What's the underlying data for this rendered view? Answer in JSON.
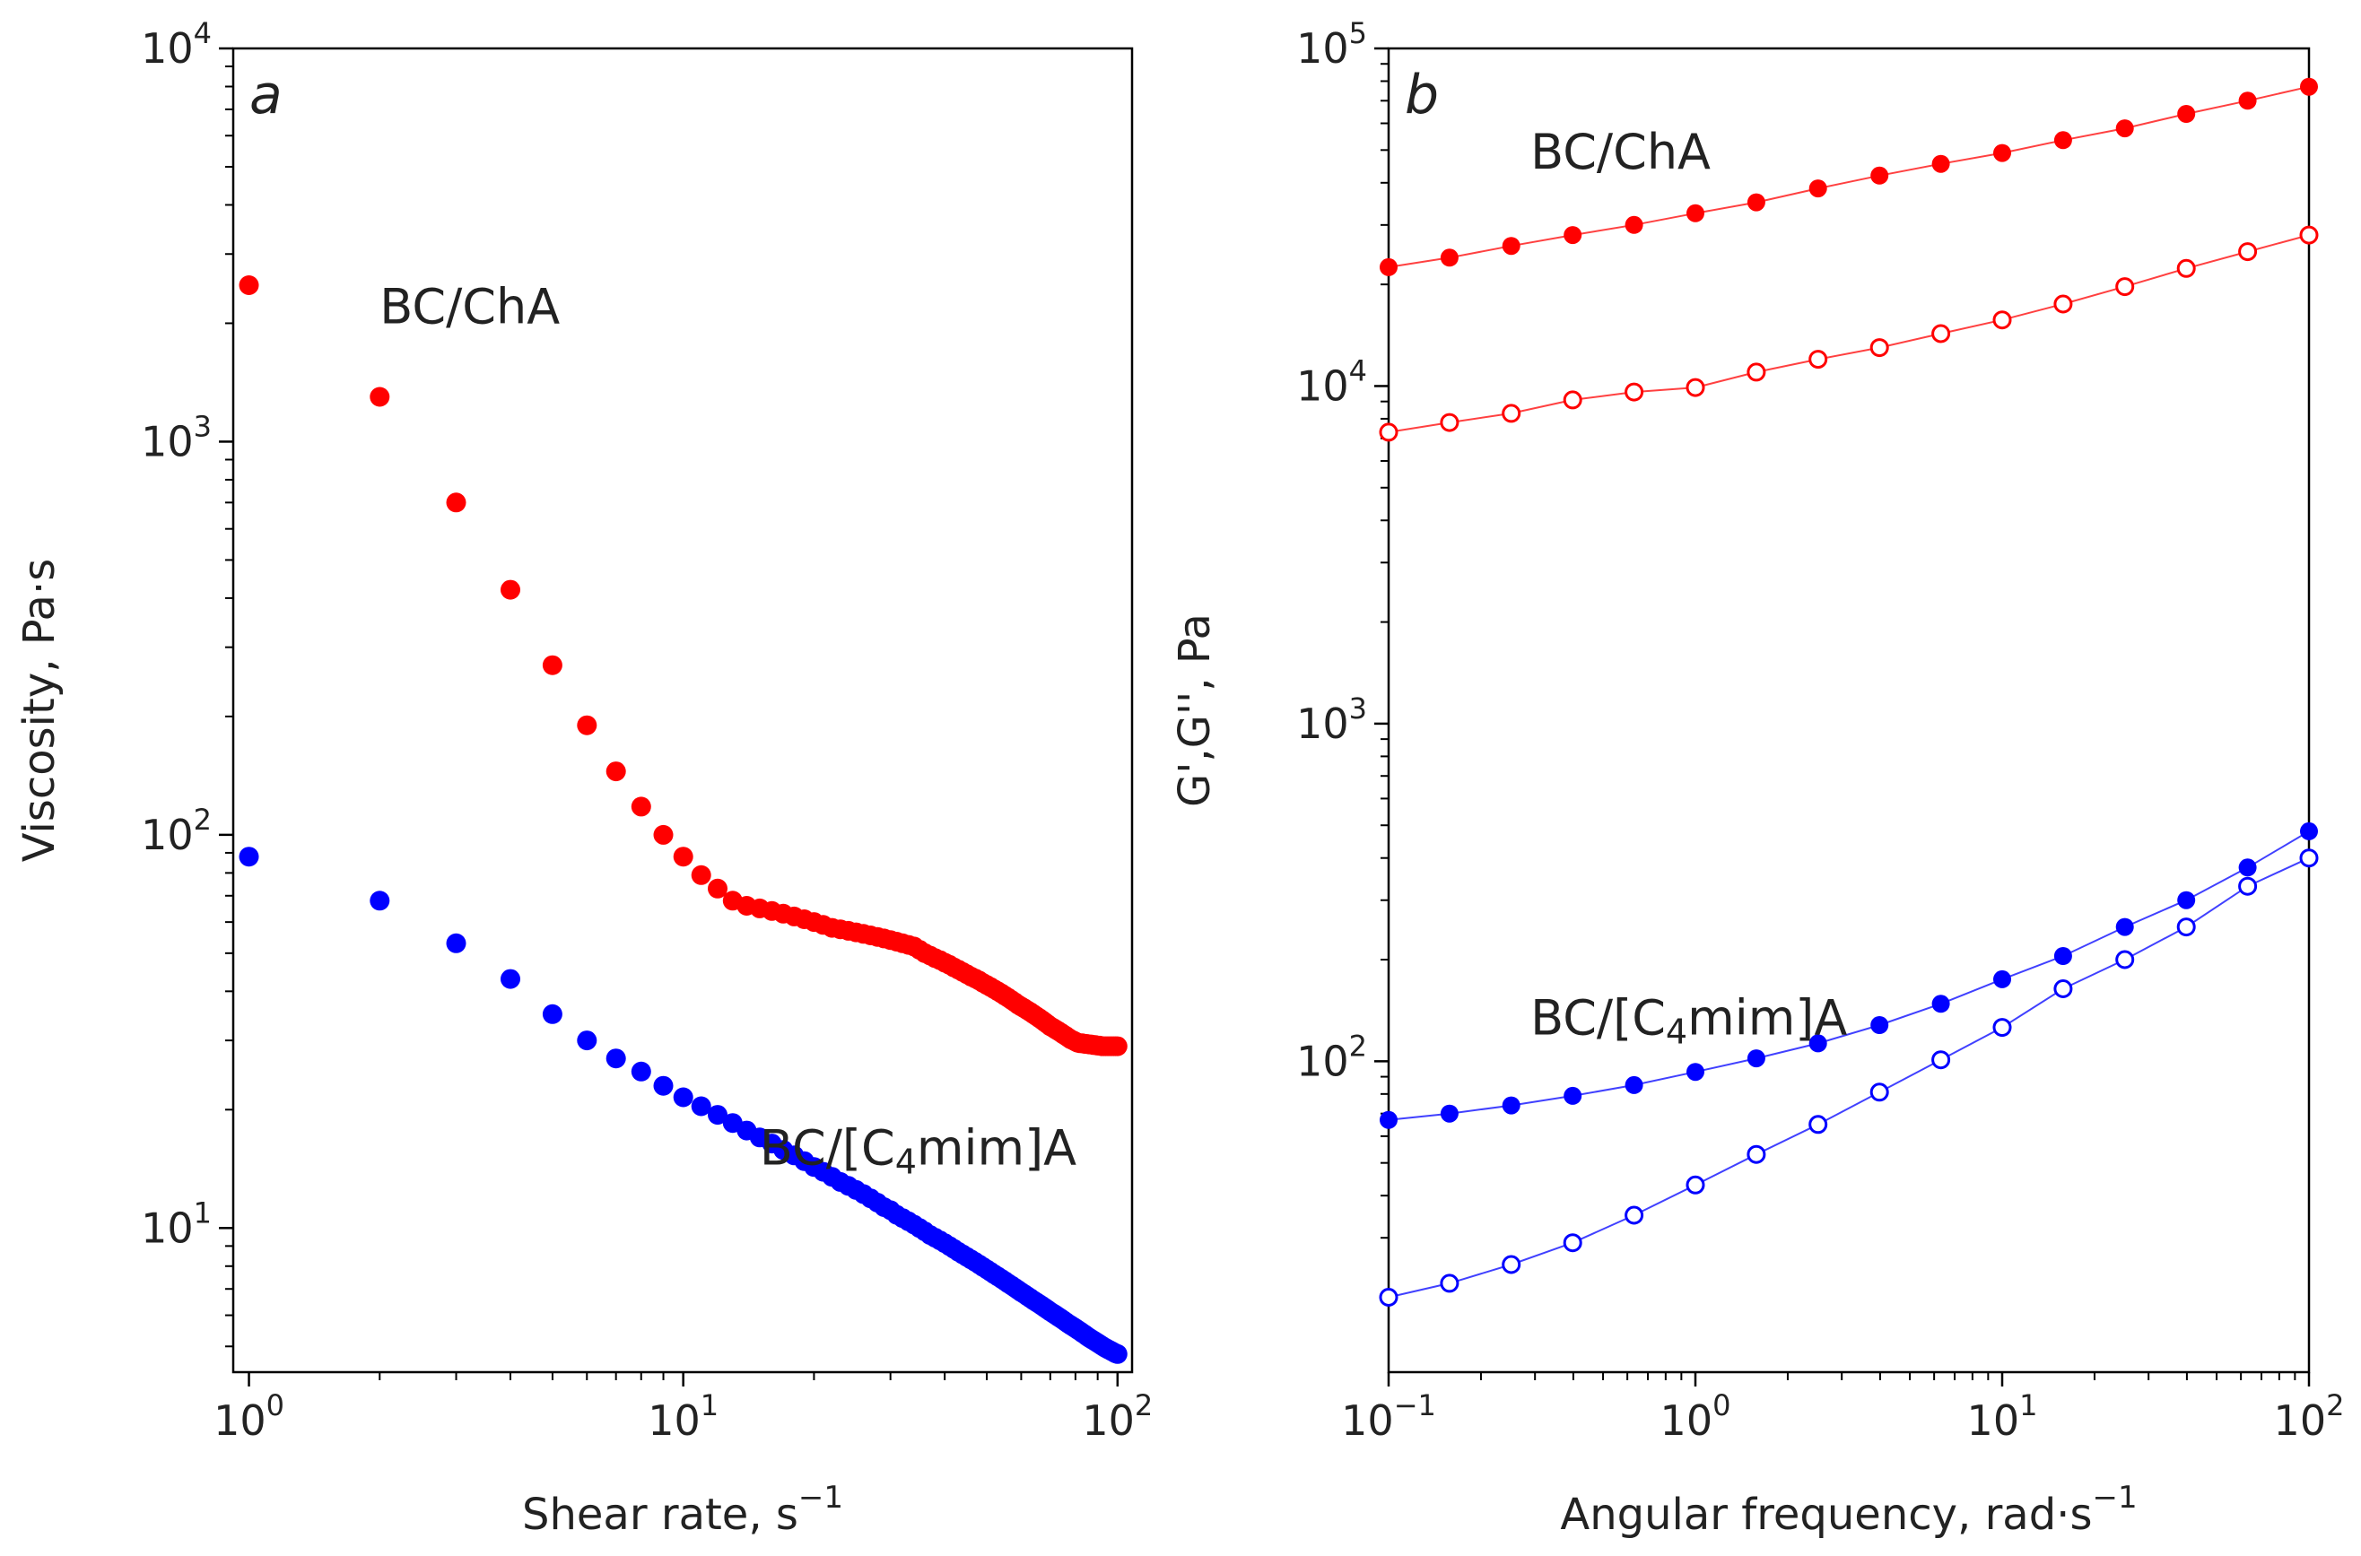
{
  "chart_data": [
    {
      "type": "scatter",
      "panel_letter": "a",
      "xlabel": "Shear rate, s",
      "xlabel_sup": "−1",
      "ylabel": "Viscosity, Pa·s",
      "xscale": "log",
      "yscale": "log",
      "xlim": [
        0.92,
        108
      ],
      "ylim": [
        4.3,
        10000
      ],
      "xticks": [
        {
          "value": 1,
          "base": "10",
          "exp": "0"
        },
        {
          "value": 10,
          "base": "10",
          "exp": "1"
        },
        {
          "value": 100,
          "base": "10",
          "exp": "2"
        }
      ],
      "yticks": [
        {
          "value": 10,
          "base": "10",
          "exp": "1"
        },
        {
          "value": 100,
          "base": "10",
          "exp": "2"
        },
        {
          "value": 1000,
          "base": "10",
          "exp": "3"
        },
        {
          "value": 10000,
          "base": "10",
          "exp": "4"
        }
      ],
      "annotations": [
        {
          "parts": [
            "BC/ChA"
          ],
          "x": 2.0,
          "y": 2000,
          "color": "#222222"
        },
        {
          "parts": [
            "BC/[C",
            "4",
            "mim]A"
          ],
          "x": 15,
          "y": 14.5,
          "color": "#222222"
        }
      ],
      "series": [
        {
          "name": "BC/ChA",
          "color": "#ff0000",
          "marker": "filled",
          "x": [
            1,
            2,
            3,
            4,
            5,
            6,
            7,
            8,
            9,
            10,
            11,
            12,
            13,
            14,
            15,
            16,
            17,
            18,
            19,
            20,
            21,
            22,
            23,
            24,
            25,
            26,
            27,
            28,
            29,
            30,
            31,
            32,
            33,
            34,
            35,
            36,
            37,
            38,
            39,
            40,
            41,
            42,
            43,
            44,
            45,
            46,
            47,
            48,
            49,
            50,
            51,
            52,
            53,
            54,
            55,
            56,
            57,
            58,
            59,
            60,
            61,
            62,
            63,
            64,
            65,
            66,
            67,
            68,
            69,
            70,
            71,
            72,
            73,
            74,
            75,
            76,
            77,
            78,
            79,
            80,
            81,
            82,
            83,
            84,
            85,
            86,
            87,
            88,
            89,
            90,
            91,
            92,
            93,
            94,
            95,
            96,
            97,
            98,
            99,
            100
          ],
          "y": [
            2500,
            1300,
            700,
            420,
            270,
            190,
            145,
            118,
            100,
            88,
            79,
            73,
            68,
            66,
            65,
            64,
            63,
            62,
            61,
            60,
            59,
            58,
            57.5,
            57,
            56.5,
            56,
            55.5,
            55,
            54.5,
            54,
            53.5,
            53,
            52.5,
            52,
            51,
            50,
            49.3,
            48.6,
            48,
            47.3,
            46.7,
            46,
            45.4,
            44.8,
            44.2,
            43.6,
            43.1,
            42.6,
            42,
            41.5,
            41,
            40.5,
            40,
            39.5,
            39,
            38.5,
            38,
            37.5,
            37,
            36.6,
            36.2,
            35.8,
            35.4,
            35,
            34.6,
            34.2,
            33.8,
            33.4,
            33,
            32.6,
            32.3,
            32,
            31.7,
            31.4,
            31.1,
            30.8,
            30.5,
            30.2,
            30,
            29.8,
            29.6,
            29.5,
            29.5,
            29.4,
            29.4,
            29.3,
            29.3,
            29.2,
            29.2,
            29.1,
            29.1,
            29,
            29,
            29,
            29,
            29,
            29,
            29,
            29,
            29
          ]
        },
        {
          "name": "BC/[C4mim]A",
          "color": "#0000ff",
          "marker": "filled",
          "x": [
            1,
            2,
            3,
            4,
            5,
            6,
            7,
            8,
            9,
            10,
            11,
            12,
            13,
            14,
            15,
            16,
            17,
            18,
            19,
            20,
            21,
            22,
            23,
            24,
            25,
            26,
            27,
            28,
            29,
            30,
            31,
            32,
            33,
            34,
            35,
            36,
            37,
            38,
            39,
            40,
            41,
            42,
            43,
            44,
            45,
            46,
            47,
            48,
            49,
            50,
            51,
            52,
            53,
            54,
            55,
            56,
            57,
            58,
            59,
            60,
            61,
            62,
            63,
            64,
            65,
            66,
            67,
            68,
            69,
            70,
            71,
            72,
            73,
            74,
            75,
            76,
            77,
            78,
            79,
            80,
            81,
            82,
            83,
            84,
            85,
            86,
            87,
            88,
            89,
            90,
            91,
            92,
            93,
            94,
            95,
            96,
            97,
            98,
            99,
            100
          ],
          "y": [
            88,
            68,
            53,
            43,
            35,
            30,
            27,
            25,
            23,
            21.5,
            20.4,
            19.4,
            18.5,
            17.7,
            17,
            16.4,
            15.8,
            15.3,
            14.8,
            14.3,
            13.9,
            13.5,
            13.1,
            12.8,
            12.5,
            12.2,
            11.9,
            11.6,
            11.3,
            11.1,
            10.8,
            10.6,
            10.4,
            10.2,
            10,
            9.8,
            9.6,
            9.45,
            9.3,
            9.15,
            9,
            8.85,
            8.7,
            8.57,
            8.44,
            8.32,
            8.2,
            8.08,
            7.96,
            7.85,
            7.74,
            7.63,
            7.53,
            7.43,
            7.33,
            7.23,
            7.14,
            7.05,
            6.96,
            6.87,
            6.79,
            6.71,
            6.63,
            6.55,
            6.48,
            6.41,
            6.34,
            6.27,
            6.2,
            6.13,
            6.07,
            6.01,
            5.95,
            5.89,
            5.83,
            5.77,
            5.71,
            5.66,
            5.61,
            5.56,
            5.51,
            5.46,
            5.41,
            5.36,
            5.31,
            5.26,
            5.22,
            5.18,
            5.14,
            5.1,
            5.06,
            5.02,
            4.98,
            4.95,
            4.92,
            4.89,
            4.86,
            4.83,
            4.8,
            4.78
          ]
        }
      ]
    },
    {
      "type": "line",
      "panel_letter": "b",
      "xlabel": "Angular frequency, rad·s",
      "xlabel_sup": "−1",
      "ylabel": "G',G'', Pa",
      "xscale": "log",
      "yscale": "log",
      "xlim": [
        0.1,
        100
      ],
      "ylim": [
        12,
        100000
      ],
      "xticks": [
        {
          "value": 0.1,
          "base": "10",
          "exp": "−1"
        },
        {
          "value": 1,
          "base": "10",
          "exp": "0"
        },
        {
          "value": 10,
          "base": "10",
          "exp": "1"
        },
        {
          "value": 100,
          "base": "10",
          "exp": "2"
        }
      ],
      "yticks": [
        {
          "value": 100,
          "base": "10",
          "exp": "2"
        },
        {
          "value": 1000,
          "base": "10",
          "exp": "3"
        },
        {
          "value": 10000,
          "base": "10",
          "exp": "4"
        },
        {
          "value": 100000,
          "base": "10",
          "exp": "5"
        }
      ],
      "annotations": [
        {
          "parts": [
            "BC/ChA"
          ],
          "x": 0.29,
          "y": 44000,
          "color": "#222222"
        },
        {
          "parts": [
            "BC/[C",
            "4",
            "mim]A"
          ],
          "x": 0.29,
          "y": 120,
          "color": "#222222"
        }
      ],
      "series": [
        {
          "name": "BC/ChA G'",
          "color": "#ff0000",
          "marker": "filled",
          "x": [
            0.1,
            0.158,
            0.251,
            0.398,
            0.631,
            1,
            1.58,
            2.51,
            3.98,
            6.31,
            10,
            15.8,
            25.1,
            39.8,
            63.1,
            100
          ],
          "y": [
            22500,
            24000,
            26000,
            28000,
            30000,
            32500,
            35000,
            38500,
            42000,
            45500,
            49000,
            53500,
            58000,
            64000,
            70000,
            77000
          ]
        },
        {
          "name": "BC/ChA G''",
          "color": "#ff0000",
          "marker": "open",
          "x": [
            0.1,
            0.158,
            0.251,
            0.398,
            0.631,
            1,
            1.58,
            2.51,
            3.98,
            6.31,
            10,
            15.8,
            25.1,
            39.8,
            63.1,
            100
          ],
          "y": [
            7300,
            7800,
            8300,
            9100,
            9600,
            9900,
            11000,
            12000,
            13000,
            14300,
            15700,
            17500,
            19700,
            22300,
            25000,
            28000
          ]
        },
        {
          "name": "BC/[C4mim]A G'",
          "color": "#0000ff",
          "marker": "filled",
          "x": [
            0.1,
            0.158,
            0.251,
            0.398,
            0.631,
            1,
            1.58,
            2.51,
            3.98,
            6.31,
            10,
            15.8,
            25.1,
            39.8,
            63.1,
            100
          ],
          "y": [
            67,
            70,
            74,
            79,
            85,
            93,
            102,
            113,
            128,
            148,
            175,
            205,
            250,
            300,
            375,
            480
          ]
        },
        {
          "name": "BC/[C4mim]A G''",
          "color": "#0000ff",
          "marker": "open",
          "x": [
            0.1,
            0.158,
            0.251,
            0.398,
            0.631,
            1,
            1.58,
            2.51,
            3.98,
            6.31,
            10,
            15.8,
            25.1,
            39.8,
            63.1,
            100
          ],
          "y": [
            20,
            22,
            25,
            29,
            35,
            43,
            53,
            65,
            81,
            101,
            126,
            164,
            200,
            250,
            330,
            400
          ]
        }
      ]
    }
  ]
}
